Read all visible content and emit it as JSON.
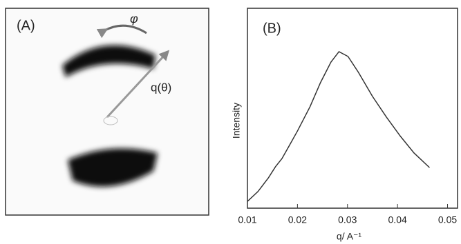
{
  "panel_a": {
    "label": "(A)",
    "annotations": [
      "φ",
      "q(θ)"
    ]
  },
  "chart_data": {
    "type": "line",
    "title": "(B)",
    "ylabel": "Intensity",
    "xlabel": "q/ A⁻¹",
    "x": [
      0.01,
      0.0121,
      0.0142,
      0.0156,
      0.0169,
      0.0183,
      0.02,
      0.0225,
      0.0246,
      0.0267,
      0.0283,
      0.0301,
      0.0322,
      0.035,
      0.0378,
      0.0406,
      0.0433,
      0.0464
    ],
    "series": [
      {
        "color": "#333333",
        "values": [
          0.034,
          0.083,
          0.152,
          0.207,
          0.248,
          0.31,
          0.386,
          0.507,
          0.628,
          0.731,
          0.783,
          0.759,
          0.679,
          0.559,
          0.455,
          0.359,
          0.276,
          0.203
        ]
      }
    ],
    "xlim": [
      0.01,
      0.052
    ],
    "ylim": [
      0,
      1
    ],
    "xticks": [
      0.01,
      0.02,
      0.03,
      0.04,
      0.05
    ]
  }
}
